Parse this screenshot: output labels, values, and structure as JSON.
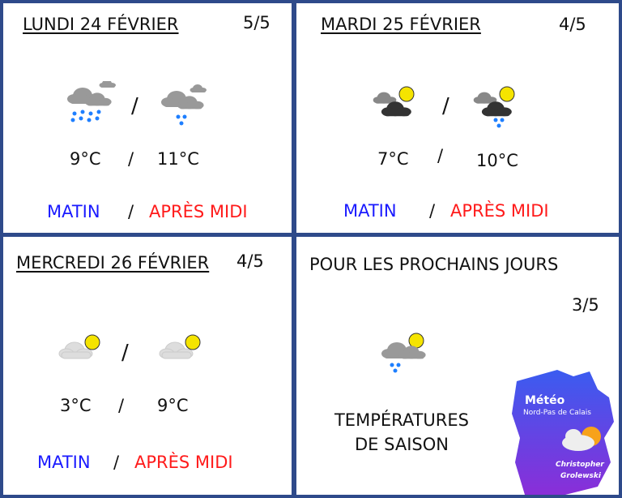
{
  "days": [
    {
      "title": "LUNDI 24 FÉVRIER",
      "rating": "5/5",
      "morning_icon": "rain-heavy-icon",
      "afternoon_icon": "rain-light-icon",
      "morning_temp": "9°C",
      "afternoon_temp": "11°C",
      "morning_label": "MATIN",
      "afternoon_label": "APRÈS MIDI",
      "sep": "/"
    },
    {
      "title": "MARDI 25 FÉVRIER",
      "rating": "4/5",
      "morning_icon": "sun-dark-clouds-icon",
      "afternoon_icon": "sun-clouds-rain-icon",
      "morning_temp": "7°C",
      "afternoon_temp": "10°C",
      "morning_label": "MATIN",
      "afternoon_label": "APRÈS MIDI",
      "sep": "/"
    },
    {
      "title": "MERCREDI 26 FÉVRIER",
      "rating": "4/5",
      "morning_icon": "sun-cloud-icon",
      "afternoon_icon": "sun-cloud-icon",
      "morning_temp": "3°C",
      "afternoon_temp": "9°C",
      "morning_label": "MATIN",
      "afternoon_label": "APRÈS MIDI",
      "sep": "/"
    }
  ],
  "outlook": {
    "title": "POUR LES PROCHAINS JOURS",
    "rating": "3/5",
    "icon": "sun-cloud-rain-icon",
    "text_line1": "TEMPÉRATURES",
    "text_line2": "DE SAISON"
  },
  "logo": {
    "line1": "Météo",
    "line2": "Nord-Pas de Calais",
    "author1": "Christopher",
    "author2": "Grolewski"
  },
  "colors": {
    "border": "#2e4a8a",
    "morning": "#1a1aff",
    "afternoon": "#ff1a1a"
  }
}
